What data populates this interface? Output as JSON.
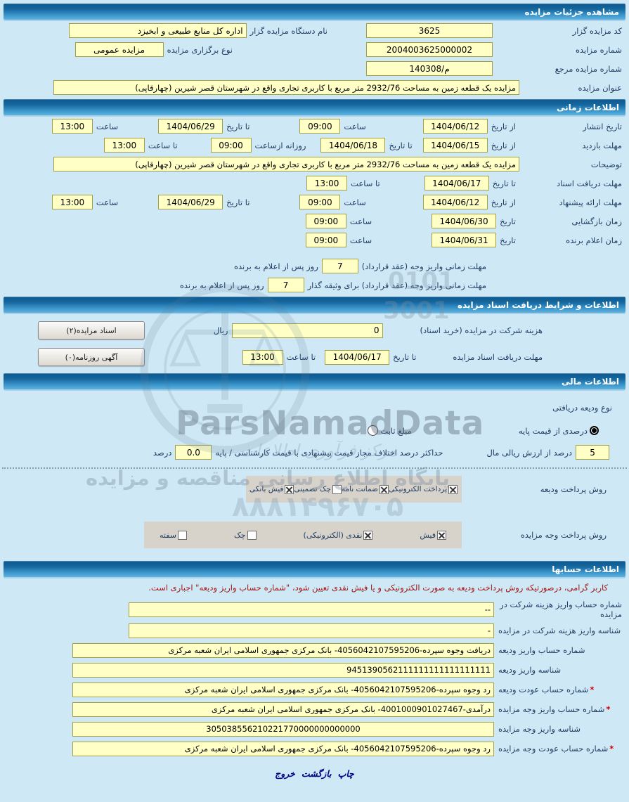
{
  "colors": {
    "section_bar": "#16679f",
    "input_bg": "#ffffc6",
    "input_border": "#a3a048",
    "notice_red": "#a01414",
    "label_blue": "#1f3c63",
    "band_gray": "#d7d3cb"
  },
  "common": {
    "from_date": "از تاریخ",
    "to_date": "تا تاریخ",
    "date": "تاریخ",
    "time": "ساعت",
    "to_time": "تا ساعت",
    "daily_from": "روزانه ازساعت",
    "rial": "ریال",
    "percent": "درصد",
    "days_after": "روز پس از اعلام به برنده"
  },
  "header": {
    "title": "مشاهده جزئیات مزایده"
  },
  "general": {
    "auctioneer_code": {
      "label": "کد مزایده گزار",
      "value": "3625"
    },
    "auctioneer_name": {
      "label": "نام دستگاه مزایده گزار",
      "value": "اداره کل منابع طبیعی و ابخیزد"
    },
    "auction_number": {
      "label": "شماره مزایده",
      "value": "2004003625000002"
    },
    "auction_type": {
      "label": "نوع برگزاری مزایده",
      "value": "مزایده عمومی"
    },
    "ref_number": {
      "label": "شماره مزایده مرجع",
      "value": "م/140308"
    },
    "auction_title": {
      "label": "عنوان مزایده",
      "value": "مزایده یک قطعه زمین به مساحت 2932/76 متر مربع با کاربری تجاری واقع در شهرستان قصر شیرین (چهارقاپی)"
    }
  },
  "time": {
    "title": "اطلاعات زمانی",
    "publish": {
      "label": "تاریخ انتشار",
      "from": "1404/06/12",
      "from_time": "09:00",
      "to": "1404/06/29",
      "to_time": "13:00"
    },
    "visit": {
      "label": "مهلت بازدید",
      "from": "1404/06/15",
      "to": "1404/06/18",
      "daily_from": "09:00",
      "daily_to": "13:00"
    },
    "description": {
      "label": "توضیحات",
      "value": "مزایده یک قطعه زمین به مساحت 2932/76 متر مربع با کاربری تجاری واقع در شهرستان قصر شیرین (چهارقاپی)"
    },
    "doc_receive": {
      "label": "مهلت دریافت اسناد",
      "to": "1404/06/17",
      "to_time": "13:00"
    },
    "offer": {
      "label": "مهلت ارائه پیشنهاد",
      "from": "1404/06/12",
      "from_time": "09:00",
      "to": "1404/06/29",
      "to_time": "13:00"
    },
    "opening": {
      "label": "زمان بازگشایی",
      "date": "1404/06/30",
      "time": "09:00"
    },
    "winner": {
      "label": "زمان اعلام برنده",
      "date": "1404/06/31",
      "time": "09:00"
    },
    "pay_deadline": {
      "label": "مهلت زمانی واریز وجه (عقد قرارداد)",
      "value": "7"
    },
    "pay_deadline_guarantor": {
      "label": "مهلت زمانی واریز وجه (عقد قرارداد) برای وثیقه گذار",
      "value": "7"
    }
  },
  "docs": {
    "title": "اطلاعات و شرایط دریافت اسناد مزایده",
    "fee": {
      "label": "هزینه شرکت در مزایده (خرید اسناد)",
      "value": "0"
    },
    "deadline": {
      "label": "مهلت دریافت اسناد مزایده",
      "to": "1404/06/17",
      "to_time": "13:00"
    },
    "docs_button": "اسناد مزایده(۲)",
    "newspaper_button": "آگهی روزنامه(۰)"
  },
  "financial": {
    "title": "اطلاعات مالی",
    "deposit_type_label": "نوع ودیعه دریافتی",
    "radio_percent": "درصدی از قیمت پایه",
    "radio_percent_checked": true,
    "radio_fixed": "مبلغ ثابت",
    "radio_fixed_checked": false,
    "percent_value": "5",
    "percent_label": "درصد از ارزش ریالی مال",
    "max_diff_label": "حداکثر درصد اختلاف مجاز قیمت پیشنهادی با قیمت کارشناسی / پایه",
    "max_diff_value": "0.0",
    "deposit_pay_label": "روش پرداخت ودیعه",
    "deposit_pay_options": [
      {
        "label": "پرداخت الکترونیکی",
        "checked": true
      },
      {
        "label": "ضمانت نامه",
        "checked": true
      },
      {
        "label": "چک تضمینی",
        "checked": false
      },
      {
        "label": "فیش بانکی",
        "checked": true
      }
    ],
    "auction_pay_label": "روش پرداخت وجه مزایده",
    "auction_pay_options": [
      {
        "label": "فیش",
        "checked": true
      },
      {
        "label": "نقدی (الکترونیکی)",
        "checked": true
      },
      {
        "label": "چک",
        "checked": false
      },
      {
        "label": "سفته",
        "checked": false
      }
    ]
  },
  "accounts": {
    "title": "اطلاعات حسابها",
    "notice": "کاربر گرامی، درصورتیکه روش پرداخت ودیعه به صورت الکترونیکی و یا فیش نقدی تعیین شود، \"شماره حساب واریز ودیعه\" اجباری است.",
    "required_mark": "*",
    "rows": [
      {
        "label": "شماره حساب واریز هزینه شرکت در مزایده",
        "value": "--",
        "required": false,
        "narrow": true
      },
      {
        "label": "شناسه واریز هزینه شرکت در مزایده",
        "value": "-",
        "required": false,
        "narrow": true
      },
      {
        "label": "شماره حساب واریز ودیعه",
        "value": "دریافت وجوه سپرده-4056042107595206- بانک مرکزی جمهوری اسلامی ایران شعبه مرکزی",
        "required": false
      },
      {
        "label": "شناسه واریز ودیعه",
        "value": "9451390562111111111111111111",
        "required": false
      },
      {
        "label": "شماره حساب عودت ودیعه",
        "value": "رد وجوه سپرده-4056042107595206- بانک مرکزی جمهوری اسلامی ایران شعبه مرکزی",
        "required": true
      },
      {
        "label": "شماره حساب واریز وجه مزایده",
        "value": "درآمدی-4001000901027467- بانک مرکزی جمهوری اسلامی ایران شعبه مرکزی",
        "required": true
      },
      {
        "label": "شناسه واریز وجه مزایده",
        "value": "305038556210221770000000000000",
        "required": false,
        "center": true
      },
      {
        "label": "شماره حساب عودت وجه مزایده",
        "value": "رد وجوه سپرده-4056042107595206- بانک مرکزی جمهوری اسلامی ایران شعبه مرکزی",
        "required": true
      }
    ]
  },
  "footer": {
    "print": "چاپ",
    "back": "بازگشت",
    "exit": "خروج"
  },
  "watermark": {
    "brand": "ParsNamadData",
    "tagline": "پایگاه اطلاع رسانی مناقصه و مزایده",
    "script_line": "مرکز فرآوری اطلاعات",
    "phone": "۸۸۸۱۴۹۶۷۰۵",
    "digits_a": "0101",
    "digits_b": "3001"
  }
}
